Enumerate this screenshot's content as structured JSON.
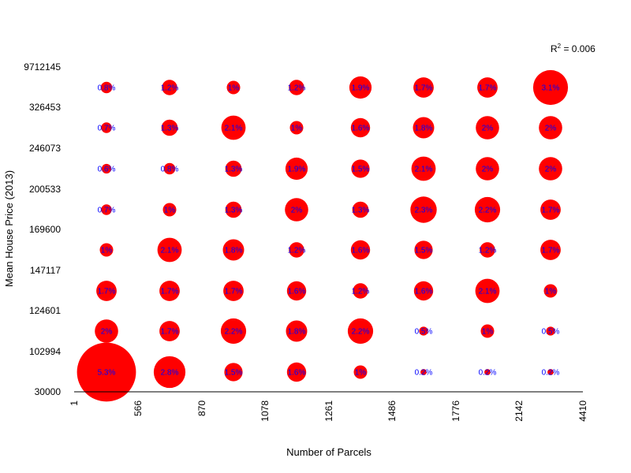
{
  "chart_data": {
    "type": "scatter",
    "title": "",
    "xlabel": "Number of Parcels",
    "ylabel": "Mean House Price (2013)",
    "annotation": {
      "r2_label": "R",
      "r2_sup": "2",
      "r2_value": " = 0.006"
    },
    "x_ticks": [
      "1",
      "566",
      "870",
      "1078",
      "1261",
      "1486",
      "1776",
      "2142",
      "4410"
    ],
    "y_ticks": [
      "30000",
      "102994",
      "124601",
      "147117",
      "169600",
      "200533",
      "246073",
      "326453",
      "9712145"
    ],
    "rows_bottom_to_top": [
      [
        "5.3%",
        "2.8%",
        "1.5%",
        "1.6%",
        "1%",
        "0.2%",
        "0.2%",
        "0.2%"
      ],
      [
        "2%",
        "1.7%",
        "2.2%",
        "1.8%",
        "2.2%",
        "0.5%",
        "1%",
        "0.5%"
      ],
      [
        "1.7%",
        "1.7%",
        "1.7%",
        "1.6%",
        "1.2%",
        "1.6%",
        "2.1%",
        "1%"
      ],
      [
        "1%",
        "2.1%",
        "1.8%",
        "1.2%",
        "1.6%",
        "1.5%",
        "1.2%",
        "1.7%"
      ],
      [
        "0.7%",
        "1%",
        "1.3%",
        "2%",
        "1.3%",
        "2.3%",
        "2.2%",
        "1.7%"
      ],
      [
        "0.6%",
        "0.8%",
        "1.3%",
        "1.9%",
        "1.5%",
        "2.1%",
        "2%",
        "2%"
      ],
      [
        "0.7%",
        "1.3%",
        "2.1%",
        "1%",
        "1.6%",
        "1.8%",
        "2%",
        "2%"
      ],
      [
        "0.8%",
        "1.2%",
        "1%",
        "1.2%",
        "1.9%",
        "1.7%",
        "1.7%",
        "3.1%"
      ]
    ],
    "colors": {
      "bubble": "#ff0000",
      "label": "#0000ff",
      "axis": "#000000"
    },
    "grid": false,
    "legend": "none"
  }
}
